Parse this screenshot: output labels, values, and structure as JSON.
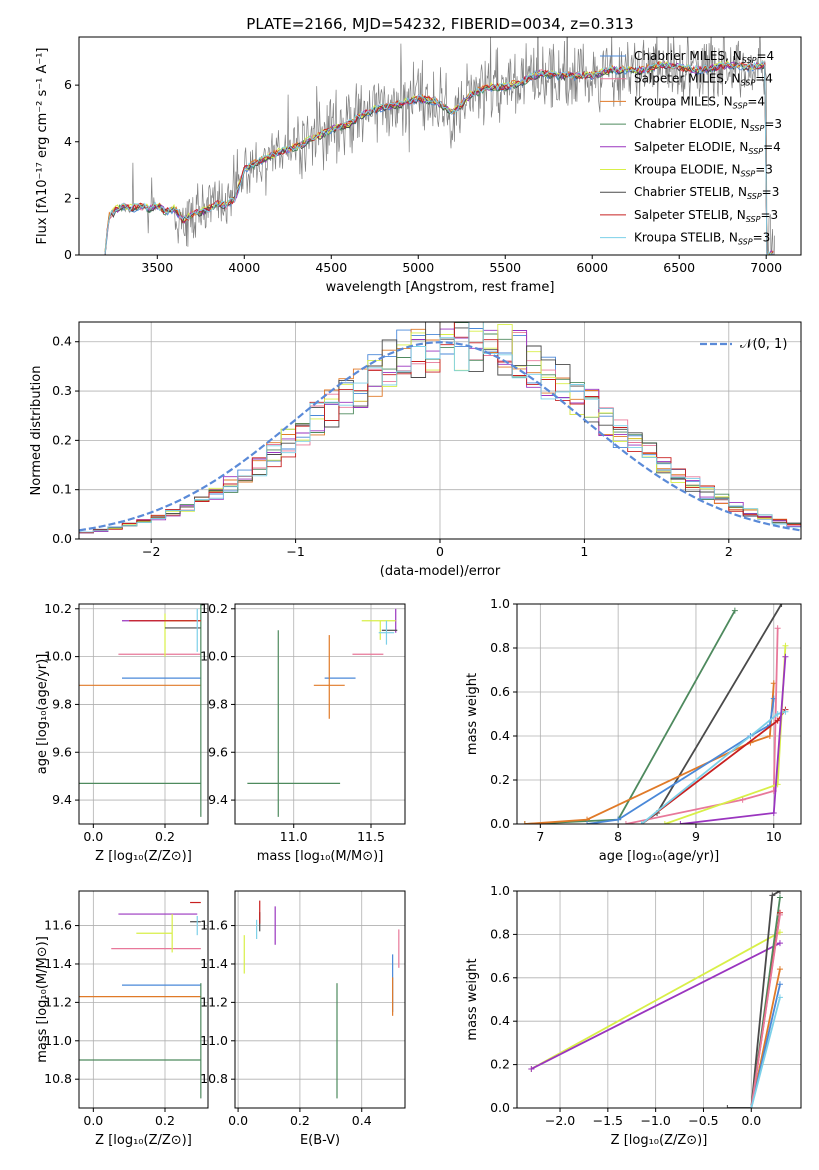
{
  "title": "PLATE=2166, MJD=54232, FIBERID=0034, z=0.313",
  "colors": {
    "Chabrier MILES": "#4a88d8",
    "Salpeter MILES": "#e8789a",
    "Kroupa MILES": "#e07a28",
    "Chabrier ELODIE": "#4e8a5e",
    "Salpeter ELODIE": "#9a35bf",
    "Kroupa ELODIE": "#d8ef48",
    "Chabrier STELIB": "#4a4a4a",
    "Salpeter STELIB": "#c82020",
    "Kroupa STELIB": "#7cd0e8",
    "data": "#808080",
    "normal": "#5a8ad8"
  },
  "legend": [
    {
      "label": "Chabrier MILES, N",
      "sub": "SSP",
      "tail": "=4",
      "key": "Chabrier MILES"
    },
    {
      "label": "Salpeter MILES, N",
      "sub": "SSP",
      "tail": "=4",
      "key": "Salpeter MILES"
    },
    {
      "label": "Kroupa MILES, N",
      "sub": "SSP",
      "tail": "=4",
      "key": "Kroupa MILES"
    },
    {
      "label": "Chabrier ELODIE, N",
      "sub": "SSP",
      "tail": "=3",
      "key": "Chabrier ELODIE"
    },
    {
      "label": "Salpeter ELODIE, N",
      "sub": "SSP",
      "tail": "=4",
      "key": "Salpeter ELODIE"
    },
    {
      "label": "Kroupa ELODIE, N",
      "sub": "SSP",
      "tail": "=3",
      "key": "Kroupa ELODIE"
    },
    {
      "label": "Chabrier STELIB, N",
      "sub": "SSP",
      "tail": "=3",
      "key": "Chabrier STELIB"
    },
    {
      "label": "Salpeter STELIB, N",
      "sub": "SSP",
      "tail": "=3",
      "key": "Salpeter STELIB"
    },
    {
      "label": "Kroupa STELIB, N",
      "sub": "SSP",
      "tail": "=3",
      "key": "Kroupa STELIB"
    }
  ],
  "chart_data": [
    {
      "id": "spectrum",
      "type": "line",
      "xlabel": "wavelength [Angstrom, rest frame]",
      "ylabel": "Flux [fλ10⁻¹⁷ erg cm⁻² s⁻¹ A⁻¹]",
      "xlim": [
        3050,
        7200
      ],
      "ylim": [
        0,
        7.7
      ],
      "xticks": [
        3500,
        4000,
        4500,
        5000,
        5500,
        6000,
        6500,
        7000
      ],
      "yticks": [
        0,
        2,
        4,
        6
      ],
      "model_continuum": [
        [
          3200,
          0
        ],
        [
          3220,
          1.3
        ],
        [
          3260,
          1.55
        ],
        [
          3300,
          1.7
        ],
        [
          3350,
          1.6
        ],
        [
          3400,
          1.7
        ],
        [
          3450,
          1.6
        ],
        [
          3500,
          1.7
        ],
        [
          3550,
          1.5
        ],
        [
          3600,
          1.6
        ],
        [
          3650,
          1.2
        ],
        [
          3700,
          1.4
        ],
        [
          3750,
          1.5
        ],
        [
          3800,
          1.6
        ],
        [
          3850,
          1.8
        ],
        [
          3900,
          1.7
        ],
        [
          3950,
          2.0
        ],
        [
          4000,
          3.0
        ],
        [
          4100,
          3.3
        ],
        [
          4200,
          3.6
        ],
        [
          4300,
          3.8
        ],
        [
          4400,
          4.1
        ],
        [
          4500,
          4.4
        ],
        [
          4600,
          4.6
        ],
        [
          4700,
          5.0
        ],
        [
          4800,
          5.2
        ],
        [
          4900,
          5.3
        ],
        [
          5000,
          5.5
        ],
        [
          5100,
          5.4
        ],
        [
          5200,
          5.0
        ],
        [
          5300,
          5.6
        ],
        [
          5400,
          5.9
        ],
        [
          5500,
          5.9
        ],
        [
          5600,
          6.1
        ],
        [
          5700,
          6.4
        ],
        [
          5800,
          6.3
        ],
        [
          5900,
          6.3
        ],
        [
          6000,
          6.3
        ],
        [
          6100,
          6.5
        ],
        [
          6200,
          6.5
        ],
        [
          6300,
          6.5
        ],
        [
          6400,
          6.7
        ],
        [
          6500,
          6.6
        ],
        [
          6600,
          6.5
        ],
        [
          6700,
          6.6
        ],
        [
          6800,
          6.7
        ],
        [
          6900,
          6.6
        ],
        [
          7000,
          6.7
        ]
      ]
    },
    {
      "id": "residuals",
      "type": "histogram",
      "xlabel": "(data-model)/error",
      "ylabel": "Normed distribution",
      "xlim": [
        -2.5,
        2.5
      ],
      "ylim": [
        0,
        0.44
      ],
      "xticks": [
        -2,
        -1,
        0,
        1,
        2
      ],
      "yticks": [
        0.0,
        0.1,
        0.2,
        0.3,
        0.4
      ],
      "normal_label": "𝒩(0, 1)"
    },
    {
      "id": "age-Z",
      "type": "errorbar",
      "xlabel": "Z [log₁₀(Z/Z⊙)]",
      "ylabel": "age  [log₁₀(age/yr)]",
      "xlim": [
        -0.04,
        0.32
      ],
      "ylim": [
        9.3,
        10.22
      ],
      "xticks": [
        0.0,
        0.2
      ],
      "yticks": [
        9.4,
        9.6,
        9.8,
        10.0,
        10.2
      ],
      "points": [
        {
          "key": "Chabrier MILES",
          "x": 0.3,
          "xerr": [
            0.22,
            0.0
          ],
          "y": 9.91,
          "yerr": [
            0.0,
            0.0
          ]
        },
        {
          "key": "Salpeter MILES",
          "x": 0.3,
          "xerr": [
            0.23,
            0.0
          ],
          "y": 10.01,
          "yerr": [
            0.0,
            0.0
          ]
        },
        {
          "key": "Kroupa MILES",
          "x": 0.3,
          "xerr": [
            0.35,
            0.0
          ],
          "y": 9.88,
          "yerr": [
            0.0,
            0.0
          ]
        },
        {
          "key": "Chabrier ELODIE",
          "x": 0.3,
          "xerr": [
            0.35,
            0.0
          ],
          "y": 9.47,
          "yerr": [
            0.14,
            0.76
          ]
        },
        {
          "key": "Salpeter ELODIE",
          "x": 0.3,
          "xerr": [
            0.22,
            0.0
          ],
          "y": 10.15,
          "yerr": [
            0.0,
            0.0
          ]
        },
        {
          "key": "Kroupa ELODIE",
          "x": 0.2,
          "xerr": [
            0.0,
            0.1
          ],
          "y": 10.15,
          "yerr": [
            0.15,
            0.03
          ]
        },
        {
          "key": "Chabrier STELIB",
          "x": 0.27,
          "xerr": [
            0.07,
            0.03
          ],
          "y": 10.12,
          "yerr": [
            0.0,
            0.0
          ]
        },
        {
          "key": "Salpeter STELIB",
          "x": 0.3,
          "xerr": [
            0.2,
            0.0
          ],
          "y": 10.15,
          "yerr": [
            0.0,
            0.0
          ]
        },
        {
          "key": "Kroupa STELIB",
          "x": 0.29,
          "xerr": [
            0.0,
            0.0
          ],
          "y": 10.1,
          "yerr": [
            0.08,
            0.1
          ]
        }
      ]
    },
    {
      "id": "age-mass",
      "type": "errorbar",
      "xlabel": "mass [log₁₀(M/M⊙)]",
      "ylabel": "",
      "xlim": [
        10.62,
        11.72
      ],
      "ylim": [
        9.3,
        10.22
      ],
      "xticks": [
        11.0,
        11.5
      ],
      "yticks": [
        9.4,
        9.6,
        9.8,
        10.0,
        10.2
      ],
      "points": [
        {
          "key": "Chabrier MILES",
          "x": 11.3,
          "xerr": [
            0.1,
            0.1
          ],
          "y": 9.91,
          "yerr": [
            0.0,
            0.0
          ]
        },
        {
          "key": "Salpeter MILES",
          "x": 11.48,
          "xerr": [
            0.1,
            0.1
          ],
          "y": 10.01,
          "yerr": [
            0.0,
            0.0
          ]
        },
        {
          "key": "Kroupa MILES",
          "x": 11.23,
          "xerr": [
            0.1,
            0.1
          ],
          "y": 9.88,
          "yerr": [
            0.14,
            0.21
          ]
        },
        {
          "key": "Chabrier ELODIE",
          "x": 10.9,
          "xerr": [
            0.2,
            0.4
          ],
          "y": 9.47,
          "yerr": [
            0.14,
            0.64
          ]
        },
        {
          "key": "Salpeter ELODIE",
          "x": 11.66,
          "xerr": [
            0.0,
            0.0
          ],
          "y": 10.15,
          "yerr": [
            0.05,
            0.05
          ]
        },
        {
          "key": "Kroupa ELODIE",
          "x": 11.56,
          "xerr": [
            0.12,
            0.1
          ],
          "y": 10.15,
          "yerr": [
            0.08,
            0.0
          ]
        },
        {
          "key": "Chabrier STELIB",
          "x": 11.62,
          "xerr": [
            0.05,
            0.05
          ],
          "y": 10.11,
          "yerr": [
            0.0,
            0.0
          ]
        },
        {
          "key": "Salpeter STELIB",
          "x": 11.72,
          "xerr": [
            0.0,
            0.0
          ],
          "y": 10.15,
          "yerr": [
            0.0,
            0.0
          ]
        },
        {
          "key": "Kroupa STELIB",
          "x": 11.6,
          "xerr": [
            0.05,
            0.05
          ],
          "y": 10.1,
          "yerr": [
            0.05,
            0.05
          ]
        }
      ]
    },
    {
      "id": "cumulative-age",
      "type": "line",
      "xlabel": "age  [log₁₀(age/yr)]",
      "ylabel": "mass weight",
      "xlim": [
        6.7,
        10.35
      ],
      "ylim": [
        0,
        1
      ],
      "xticks": [
        7,
        8,
        9,
        10
      ],
      "yticks": [
        0.0,
        0.2,
        0.4,
        0.6,
        0.8,
        1.0
      ],
      "series": [
        {
          "key": "Chabrier ELODIE",
          "x": [
            6.8,
            8.0,
            9.5
          ],
          "y": [
            0.0,
            0.02,
            0.97
          ]
        },
        {
          "key": "Chabrier STELIB",
          "x": [
            8.3,
            8.5,
            10.1
          ],
          "y": [
            0.0,
            0.05,
            1.0
          ]
        },
        {
          "key": "Kroupa MILES",
          "x": [
            6.8,
            7.6,
            9.7,
            9.95,
            10.0
          ],
          "y": [
            0.0,
            0.02,
            0.37,
            0.4,
            0.64
          ]
        },
        {
          "key": "Chabrier MILES",
          "x": [
            7.6,
            8.0,
            9.7,
            9.95,
            10.0
          ],
          "y": [
            0.0,
            0.02,
            0.4,
            0.45,
            0.57
          ]
        },
        {
          "key": "Salpeter MILES",
          "x": [
            8.1,
            9.6,
            10.0,
            10.05
          ],
          "y": [
            0.0,
            0.11,
            0.15,
            0.89
          ]
        },
        {
          "key": "Salpeter STELIB",
          "x": [
            8.3,
            10.05,
            10.15
          ],
          "y": [
            0.0,
            0.47,
            0.52
          ]
        },
        {
          "key": "Kroupa STELIB",
          "x": [
            8.3,
            10.05,
            10.15
          ],
          "y": [
            0.0,
            0.5,
            0.51
          ]
        },
        {
          "key": "Kroupa ELODIE",
          "x": [
            8.6,
            10.05,
            10.15
          ],
          "y": [
            0.0,
            0.18,
            0.81
          ]
        },
        {
          "key": "Salpeter ELODIE",
          "x": [
            8.8,
            10.0,
            10.15
          ],
          "y": [
            0.0,
            0.05,
            0.76
          ]
        }
      ]
    },
    {
      "id": "mass-Z",
      "type": "errorbar",
      "xlabel": "Z [log₁₀(Z/Z⊙)]",
      "ylabel": "mass [log₁₀(M/M⊙)]",
      "xlim": [
        -0.04,
        0.32
      ],
      "ylim": [
        10.65,
        11.78
      ],
      "xticks": [
        0.0,
        0.2
      ],
      "yticks": [
        10.8,
        11.0,
        11.2,
        11.4,
        11.6
      ],
      "points": [
        {
          "key": "Chabrier MILES",
          "x": 0.3,
          "xerr": [
            0.22,
            0.0
          ],
          "y": 11.29,
          "yerr": [
            0.0,
            0.0
          ]
        },
        {
          "key": "Salpeter MILES",
          "x": 0.3,
          "xerr": [
            0.25,
            0.0
          ],
          "y": 11.48,
          "yerr": [
            0.0,
            0.0
          ]
        },
        {
          "key": "Kroupa MILES",
          "x": 0.3,
          "xerr": [
            0.35,
            0.0
          ],
          "y": 11.23,
          "yerr": [
            0.0,
            0.0
          ]
        },
        {
          "key": "Chabrier ELODIE",
          "x": 0.3,
          "xerr": [
            0.35,
            0.0
          ],
          "y": 10.9,
          "yerr": [
            0.2,
            0.4
          ]
        },
        {
          "key": "Salpeter ELODIE",
          "x": 0.22,
          "xerr": [
            0.15,
            0.07
          ],
          "y": 11.66,
          "yerr": [
            0.0,
            0.0
          ]
        },
        {
          "key": "Kroupa ELODIE",
          "x": 0.22,
          "xerr": [
            0.1,
            0.0
          ],
          "y": 11.56,
          "yerr": [
            0.1,
            0.1
          ]
        },
        {
          "key": "Chabrier STELIB",
          "x": 0.27,
          "xerr": [
            0.0,
            0.03
          ],
          "y": 11.62,
          "yerr": [
            0.0,
            0.0
          ]
        },
        {
          "key": "Salpeter STELIB",
          "x": 0.3,
          "xerr": [
            0.03,
            0.0
          ],
          "y": 11.72,
          "yerr": [
            0.0,
            0.0
          ]
        },
        {
          "key": "Kroupa STELIB",
          "x": 0.29,
          "xerr": [
            0.0,
            0.0
          ],
          "y": 11.6,
          "yerr": [
            0.05,
            0.05
          ]
        }
      ]
    },
    {
      "id": "mass-EBV",
      "type": "errorbar",
      "xlabel": "E(B-V)",
      "ylabel": "",
      "xlim": [
        -0.01,
        0.54
      ],
      "ylim": [
        10.65,
        11.78
      ],
      "xticks": [
        0.0,
        0.2,
        0.4
      ],
      "yticks": [
        10.8,
        11.0,
        11.2,
        11.4,
        11.6
      ],
      "points": [
        {
          "key": "Chabrier MILES",
          "x": 0.5,
          "xerr": [
            0.0,
            0.0
          ],
          "y": 11.3,
          "yerr": [
            0.15,
            0.15
          ]
        },
        {
          "key": "Salpeter MILES",
          "x": 0.52,
          "xerr": [
            0.0,
            0.0
          ],
          "y": 11.48,
          "yerr": [
            0.1,
            0.1
          ]
        },
        {
          "key": "Kroupa MILES",
          "x": 0.5,
          "xerr": [
            0.0,
            0.0
          ],
          "y": 11.23,
          "yerr": [
            0.1,
            0.1
          ]
        },
        {
          "key": "Chabrier ELODIE",
          "x": 0.32,
          "xerr": [
            0.0,
            0.0
          ],
          "y": 10.9,
          "yerr": [
            0.2,
            0.4
          ]
        },
        {
          "key": "Salpeter ELODIE",
          "x": 0.12,
          "xerr": [
            0.0,
            0.0
          ],
          "y": 11.6,
          "yerr": [
            0.1,
            0.1
          ]
        },
        {
          "key": "Kroupa ELODIE",
          "x": 0.02,
          "xerr": [
            0.0,
            0.0
          ],
          "y": 11.45,
          "yerr": [
            0.1,
            0.1
          ]
        },
        {
          "key": "Chabrier STELIB",
          "x": 0.07,
          "xerr": [
            0.0,
            0.0
          ],
          "y": 11.62,
          "yerr": [
            0.05,
            0.05
          ]
        },
        {
          "key": "Salpeter STELIB",
          "x": 0.07,
          "xerr": [
            0.0,
            0.0
          ],
          "y": 11.67,
          "yerr": [
            0.06,
            0.06
          ]
        },
        {
          "key": "Kroupa STELIB",
          "x": 0.06,
          "xerr": [
            0.0,
            0.0
          ],
          "y": 11.58,
          "yerr": [
            0.05,
            0.05
          ]
        }
      ]
    },
    {
      "id": "cumulative-Z",
      "type": "line",
      "xlabel": "Z [log₁₀(Z/Z⊙)]",
      "ylabel": "mass weight",
      "xlim": [
        -2.45,
        0.52
      ],
      "ylim": [
        0,
        1
      ],
      "xticks": [
        -2.0,
        -1.5,
        -1.0,
        -0.5,
        0.0
      ],
      "yticks": [
        0.0,
        0.2,
        0.4,
        0.6,
        0.8,
        1.0
      ],
      "series": [
        {
          "key": "Kroupa ELODIE",
          "x": [
            -2.3,
            0.3
          ],
          "y": [
            0.18,
            0.81
          ]
        },
        {
          "key": "Salpeter ELODIE",
          "x": [
            -2.3,
            0.3
          ],
          "y": [
            0.18,
            0.76
          ]
        },
        {
          "key": "Chabrier STELIB",
          "x": [
            -0.25,
            0.0,
            0.22,
            0.3
          ],
          "y": [
            0.0,
            0.0,
            0.98,
            1.0
          ]
        },
        {
          "key": "Chabrier ELODIE",
          "x": [
            0.0,
            0.3
          ],
          "y": [
            0.0,
            0.97
          ]
        },
        {
          "key": "Salpeter STELIB",
          "x": [
            0.0,
            0.3
          ],
          "y": [
            0.0,
            0.9
          ]
        },
        {
          "key": "Kroupa MILES",
          "x": [
            0.0,
            0.3
          ],
          "y": [
            0.0,
            0.64
          ]
        },
        {
          "key": "Chabrier MILES",
          "x": [
            0.0,
            0.3
          ],
          "y": [
            0.0,
            0.57
          ]
        },
        {
          "key": "Salpeter MILES",
          "x": [
            0.0,
            0.3
          ],
          "y": [
            0.0,
            0.89
          ]
        },
        {
          "key": "Kroupa STELIB",
          "x": [
            0.0,
            0.3
          ],
          "y": [
            0.0,
            0.51
          ]
        }
      ]
    }
  ]
}
